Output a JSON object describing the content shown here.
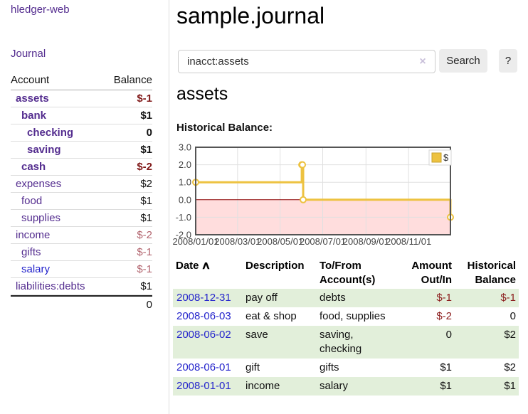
{
  "colors": {
    "link_purple": "#542d8f",
    "link_blue": "#2525cc",
    "neg_strong": "#801919",
    "neg_soft": "#b2646e",
    "table_neg": "#8b1c1c",
    "stripe_green": "#e2efda",
    "chart_border": "#545454",
    "grid_line": "#e0e0e0",
    "button_bg": "#ececec",
    "divider": "#dddddd"
  },
  "sidebar": {
    "brand": "hledger-web",
    "nav": "Journal",
    "accounts": {
      "headers": {
        "account": "Account",
        "balance": "Balance"
      },
      "rows": [
        {
          "name": "assets",
          "balance": "$-1",
          "depth": 1,
          "bold": true,
          "balance_style": "neg-strong"
        },
        {
          "name": "bank",
          "balance": "$1",
          "depth": 2,
          "bold": true,
          "balance_style": ""
        },
        {
          "name": "checking",
          "balance": "0",
          "depth": 3,
          "bold": true,
          "balance_style": ""
        },
        {
          "name": "saving",
          "balance": "$1",
          "depth": 3,
          "bold": true,
          "balance_style": ""
        },
        {
          "name": "cash",
          "balance": "$-2",
          "depth": 2,
          "bold": true,
          "balance_style": "neg-strong"
        },
        {
          "name": "expenses",
          "balance": "$2",
          "depth": 1,
          "bold": false,
          "balance_style": ""
        },
        {
          "name": "food",
          "balance": "$1",
          "depth": 2,
          "bold": false,
          "balance_style": ""
        },
        {
          "name": "supplies",
          "balance": "$1",
          "depth": 2,
          "bold": false,
          "balance_style": ""
        },
        {
          "name": "income",
          "balance": "$-2",
          "depth": 1,
          "bold": false,
          "balance_style": "neg-soft"
        },
        {
          "name": "gifts",
          "balance": "$-1",
          "depth": 2,
          "bold": false,
          "balance_style": "neg-soft"
        },
        {
          "name": "salary",
          "balance": "$-1",
          "depth": 2,
          "bold": false,
          "balance_style": "neg-soft",
          "link_blue": true
        },
        {
          "name": "liabilities:debts",
          "balance": "$1",
          "depth": 1,
          "bold": false,
          "balance_style": ""
        }
      ],
      "total": "0"
    }
  },
  "header": {
    "title": "sample.journal"
  },
  "search": {
    "query": "inacct:assets",
    "clear_icon": "×",
    "search_button": "Search",
    "help_button": "?"
  },
  "account_view": {
    "heading": "assets",
    "chart_title": "Historical Balance:"
  },
  "chart_data": {
    "type": "line",
    "step": true,
    "series": [
      {
        "name": "$",
        "color": "#edc240",
        "points": [
          {
            "x": "2008-01-01",
            "y": 1
          },
          {
            "x": "2008-06-01",
            "y": 2
          },
          {
            "x": "2008-06-02",
            "y": 2
          },
          {
            "x": "2008-06-03",
            "y": 0
          },
          {
            "x": "2008-12-31",
            "y": -1
          }
        ]
      }
    ],
    "x_range": [
      "2008-01-01",
      "2008-12-31"
    ],
    "ylim": [
      -2,
      3
    ],
    "y_ticks": [
      3,
      2,
      1,
      0,
      -1,
      -2
    ],
    "y_tick_labels": [
      "3.0",
      "2.0",
      "1.0",
      "0.0",
      "-1.0",
      "-2.0"
    ],
    "x_tick_dates": [
      "2008-01-01",
      "2008-03-01",
      "2008-05-01",
      "2008-07-01",
      "2008-09-01",
      "2008-11-01"
    ],
    "x_tick_labels": [
      "2008/01/01",
      "2008/03/01",
      "2008/05/01",
      "2008/07/01",
      "2008/09/01",
      "2008/11/01"
    ],
    "legend_position": "top-right",
    "grid": true,
    "negative_fill": "#ffdddd",
    "zero_line_color": "#8b0000"
  },
  "register": {
    "sort_icon": "∧",
    "columns": {
      "date": "Date",
      "description": "Description",
      "accounts_line1": "To/From",
      "accounts_line2": "Account(s)",
      "amount_line1": "Amount",
      "amount_line2": "Out/In",
      "balance_line1": "Historical",
      "balance_line2": "Balance"
    },
    "rows": [
      {
        "date": "2008-12-31",
        "description": "pay off",
        "accounts": "debts",
        "amount": "$-1",
        "balance": "$-1",
        "amount_negative": true,
        "balance_negative": true
      },
      {
        "date": "2008-06-03",
        "description": "eat & shop",
        "accounts": "food, supplies",
        "amount": "$-2",
        "balance": "0",
        "amount_negative": true,
        "balance_negative": false
      },
      {
        "date": "2008-06-02",
        "description": "save",
        "accounts": "saving, checking",
        "amount": "0",
        "balance": "$2",
        "amount_negative": false,
        "balance_negative": false
      },
      {
        "date": "2008-06-01",
        "description": "gift",
        "accounts": "gifts",
        "amount": "$1",
        "balance": "$2",
        "amount_negative": false,
        "balance_negative": false
      },
      {
        "date": "2008-01-01",
        "description": "income",
        "accounts": "salary",
        "amount": "$1",
        "balance": "$1",
        "amount_negative": false,
        "balance_negative": false
      }
    ]
  }
}
